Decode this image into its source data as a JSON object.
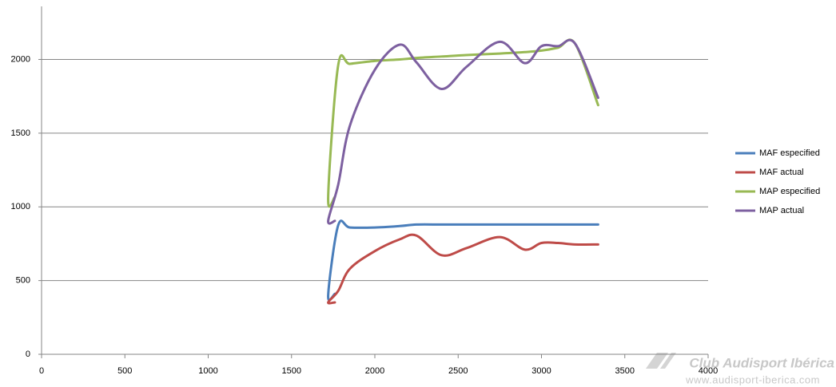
{
  "chart_data": {
    "type": "line",
    "x": [
      1760,
      1720,
      1780,
      1850,
      2000,
      2150,
      2250,
      2400,
      2550,
      2750,
      2900,
      3000,
      3100,
      3200,
      3340
    ],
    "series": [
      {
        "name": "MAF especified",
        "color": "#4a7ebb",
        "values": [
          410,
          400,
          875,
          860,
          860,
          870,
          880,
          880,
          880,
          880,
          880,
          880,
          880,
          880,
          880
        ]
      },
      {
        "name": "MAF actual",
        "color": "#be4b48",
        "values": [
          352,
          352,
          430,
          580,
          700,
          780,
          805,
          672,
          720,
          795,
          710,
          755,
          755,
          745,
          745
        ]
      },
      {
        "name": "MAP especified",
        "color": "#98b954",
        "values": [
          1068,
          1068,
          1960,
          1970,
          1990,
          2000,
          2010,
          2020,
          2030,
          2040,
          2050,
          2060,
          2080,
          2110,
          1690
        ]
      },
      {
        "name": "MAP actual",
        "color": "#7d60a0",
        "values": [
          905,
          905,
          1150,
          1550,
          1930,
          2100,
          1980,
          1800,
          1950,
          2120,
          1975,
          2090,
          2090,
          2110,
          1740
        ]
      }
    ],
    "xlim": [
      0,
      4000
    ],
    "xticks": [
      0,
      500,
      1000,
      1500,
      2000,
      2500,
      3000,
      3500,
      4000
    ],
    "ylim": [
      0,
      2360
    ],
    "yticks": [
      0,
      500,
      1000,
      1500,
      2000
    ],
    "grid": true,
    "legend": "right",
    "watermark": {
      "title": "Club Audisport Ibérica",
      "url": "www.audisport-iberica.com"
    }
  }
}
